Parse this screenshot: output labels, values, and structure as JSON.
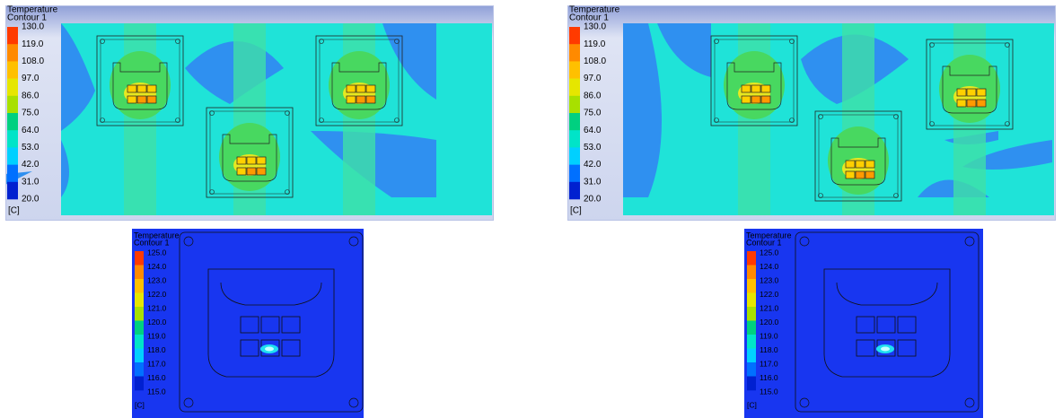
{
  "panels": [
    {
      "title": "Temperature",
      "subtitle": "Contour 1",
      "levels": [
        "130.0",
        "119.0",
        "108.0",
        "97.0",
        "86.0",
        "75.0",
        "64.0",
        "53.0",
        "42.0",
        "31.0",
        "20.0"
      ],
      "unit": "[C]"
    },
    {
      "title": "Temperature",
      "subtitle": "Contour 1",
      "levels": [
        "130.0",
        "119.0",
        "108.0",
        "97.0",
        "86.0",
        "75.0",
        "64.0",
        "53.0",
        "42.0",
        "31.0",
        "20.0"
      ],
      "unit": "[C]"
    },
    {
      "title": "Temperature",
      "subtitle": "Contour 1",
      "levels": [
        "125.0",
        "124.0",
        "123.0",
        "122.0",
        "121.0",
        "120.0",
        "119.0",
        "118.0",
        "117.0",
        "116.0",
        "115.0"
      ],
      "unit": "[C]"
    },
    {
      "title": "Temperature",
      "subtitle": "Contour 1",
      "levels": [
        "125.0",
        "124.0",
        "123.0",
        "122.0",
        "121.0",
        "120.0",
        "119.0",
        "118.0",
        "117.0",
        "116.0",
        "115.0"
      ],
      "unit": "[C]"
    }
  ]
}
